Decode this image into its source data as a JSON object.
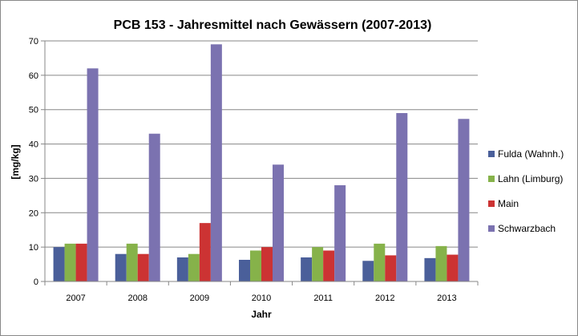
{
  "chart_data": {
    "type": "bar",
    "title": "PCB 153 - Jahresmittel nach Gewässern (2007-2013)",
    "xlabel": "Jahr",
    "ylabel": "[mg/kg]",
    "ylim": [
      0,
      70
    ],
    "yticks": [
      0,
      10,
      20,
      30,
      40,
      50,
      60,
      70
    ],
    "grid": true,
    "legend_position": "right",
    "categories": [
      "2007",
      "2008",
      "2009",
      "2010",
      "2011",
      "2012",
      "2013"
    ],
    "series": [
      {
        "name": "Fulda (Wahnh.)",
        "color": "#4a5f9a",
        "values": [
          10,
          8,
          7,
          6.3,
          7,
          6,
          6.8
        ]
      },
      {
        "name": "Lahn (Limburg)",
        "color": "#86b24a",
        "values": [
          11,
          11,
          8,
          9,
          10,
          11,
          10.3
        ]
      },
      {
        "name": "Main",
        "color": "#cc3333",
        "values": [
          11,
          8,
          17,
          10,
          9,
          7.6,
          7.8
        ]
      },
      {
        "name": "Schwarzbach",
        "color": "#7b72b0",
        "values": [
          62,
          43,
          69,
          34,
          28,
          49,
          47.3
        ]
      }
    ]
  }
}
